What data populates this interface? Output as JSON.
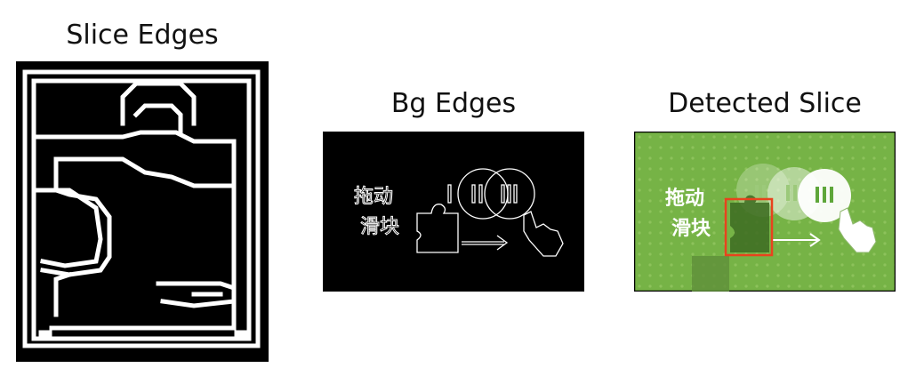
{
  "panels": [
    {
      "title": "Slice Edges"
    },
    {
      "title": "Bg Edges",
      "caption_line1": "拖动",
      "caption_line2": "滑块"
    },
    {
      "title": "Detected Slice",
      "caption_line1": "拖动",
      "caption_line2": "滑块"
    }
  ],
  "colors": {
    "edge_bg": "#000000",
    "edge_fg": "#ffffff",
    "captcha_green": "#76b346",
    "detect_box": "#e8431d"
  }
}
